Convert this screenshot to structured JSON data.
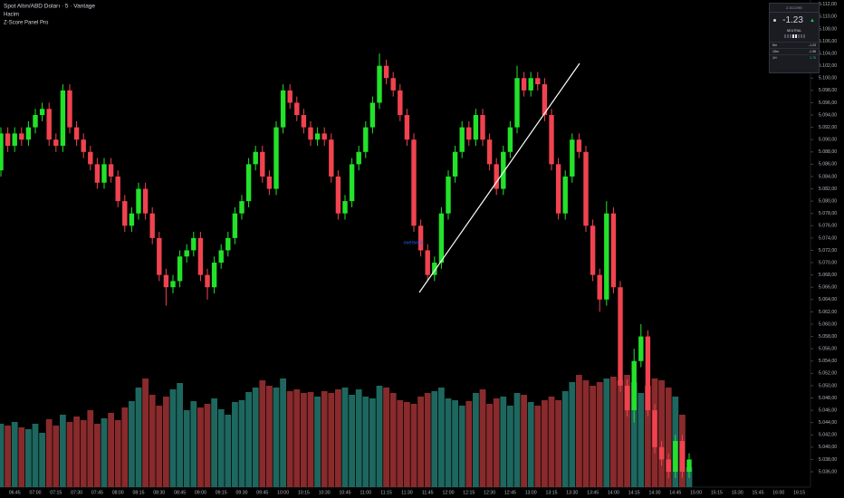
{
  "chart_data": {
    "type": "candlestick",
    "title": "Spot Altın/ABD Doları · 5 · Vantage",
    "indicators": [
      "Hacim",
      "Z-Score Panel Pro"
    ],
    "annotation": "oversold",
    "categories": [
      null,
      null,
      "06:45",
      null,
      null,
      "07:00",
      null,
      null,
      "07:15",
      null,
      null,
      "07:30",
      null,
      null,
      "07:45",
      null,
      null,
      "08:00",
      null,
      null,
      "08:15",
      null,
      null,
      "08:30",
      null,
      null,
      "08:45",
      null,
      null,
      "09:00",
      null,
      null,
      "09:15",
      null,
      null,
      "09:30",
      null,
      null,
      "09:45",
      null,
      null,
      "10:00",
      null,
      null,
      "10:15",
      null,
      null,
      "10:30",
      null,
      null,
      "10:45",
      null,
      null,
      "11:00",
      null,
      null,
      "11:15",
      null,
      null,
      "11:30",
      null,
      null,
      "11:45",
      null,
      null,
      "12:00",
      null,
      null,
      "12:15",
      null,
      null,
      "12:30",
      null,
      null,
      "12:45",
      null,
      null,
      "13:00",
      null,
      null,
      "13:15",
      null,
      null,
      "13:30",
      null,
      null,
      "13:45",
      null,
      null,
      "14:00",
      null,
      null,
      "14:15",
      null,
      null,
      "14:30",
      null,
      null,
      "14:45",
      null,
      null,
      "15:00",
      null,
      null,
      "15:15",
      null,
      null,
      "15:30",
      null,
      null,
      "15:45",
      null,
      null,
      "16:00",
      null,
      null,
      "16:15"
    ],
    "open": [
      5085,
      5091,
      5089,
      5091,
      5090,
      5092,
      5094,
      5095,
      5090,
      5089,
      5098,
      5092,
      5090,
      5088,
      5086,
      5083,
      5086,
      5084,
      5080,
      5076,
      5078,
      5082,
      5078,
      5074,
      5068,
      5066,
      5067,
      5071,
      5072,
      5074,
      5068,
      5066,
      5070,
      5072,
      5074,
      5078,
      5080,
      5086,
      5088,
      5084,
      5082,
      5092,
      5098,
      5096,
      5094,
      5092,
      5090,
      5091,
      5090,
      5084,
      5078,
      5080,
      5086,
      5088,
      5092,
      5096,
      5102,
      5100,
      5098,
      5094,
      5090,
      5076,
      5072,
      5068,
      5070,
      5078,
      5084,
      5088,
      5092,
      5090,
      5094,
      5090,
      5086,
      5082,
      5088,
      5092,
      5100,
      5098,
      5100,
      5099,
      5094,
      5086,
      5078,
      5084,
      5090,
      5088,
      5076,
      5068,
      5064,
      5078,
      5066,
      5050,
      5046,
      5054,
      5058,
      5046,
      5040,
      5038,
      5036,
      5041,
      5036,
      null,
      null,
      null,
      null,
      null,
      null,
      null,
      null,
      null,
      null,
      null,
      null,
      null,
      null,
      null,
      null
    ],
    "high": [
      5092,
      5092,
      5092,
      5092,
      5093,
      5095,
      5096,
      5096,
      5091,
      5099,
      5099,
      5093,
      5091,
      5089,
      5087,
      5087,
      5087,
      5085,
      5081,
      5079,
      5083,
      5083,
      5079,
      5075,
      5069,
      5068,
      5072,
      5073,
      5075,
      5075,
      5069,
      5071,
      5073,
      5075,
      5079,
      5081,
      5087,
      5089,
      5089,
      5085,
      5093,
      5099,
      5099,
      5097,
      5095,
      5093,
      5092,
      5092,
      5091,
      5085,
      5081,
      5087,
      5089,
      5093,
      5097,
      5104,
      5103,
      5101,
      5099,
      5095,
      5091,
      5077,
      5073,
      5071,
      5079,
      5085,
      5089,
      5093,
      5093,
      5095,
      5095,
      5091,
      5087,
      5089,
      5093,
      5102,
      5101,
      5101,
      5101,
      5100,
      5095,
      5087,
      5085,
      5091,
      5091,
      5089,
      5077,
      5069,
      5080,
      5079,
      5067,
      5051,
      5056,
      5060,
      5059,
      5047,
      5041,
      5039,
      5042,
      5042,
      5039,
      null,
      null,
      null,
      null,
      null,
      null,
      null,
      null,
      null,
      null,
      null,
      null,
      null,
      null,
      null,
      null
    ],
    "low": [
      5084,
      5088,
      5088,
      5089,
      5089,
      5091,
      5093,
      5089,
      5088,
      5088,
      5091,
      5089,
      5087,
      5085,
      5082,
      5082,
      5083,
      5079,
      5075,
      5075,
      5077,
      5077,
      5073,
      5067,
      5063,
      5065,
      5066,
      5070,
      5071,
      5067,
      5064,
      5065,
      5069,
      5071,
      5073,
      5077,
      5079,
      5085,
      5083,
      5081,
      5081,
      5091,
      5095,
      5093,
      5091,
      5089,
      5089,
      5089,
      5083,
      5077,
      5077,
      5079,
      5085,
      5087,
      5091,
      5095,
      5099,
      5097,
      5093,
      5089,
      5075,
      5071,
      5067,
      5067,
      5069,
      5077,
      5083,
      5087,
      5089,
      5089,
      5089,
      5085,
      5081,
      5081,
      5087,
      5091,
      5097,
      5097,
      5098,
      5093,
      5085,
      5077,
      5077,
      5083,
      5087,
      5075,
      5067,
      5062,
      5063,
      5065,
      5049,
      5045,
      5044,
      5053,
      5045,
      5039,
      5037,
      5035,
      5035,
      5035,
      5035,
      null,
      null,
      null,
      null,
      null,
      null,
      null,
      null,
      null,
      null,
      null,
      null,
      null,
      null,
      null,
      null
    ],
    "close": [
      5091,
      5089,
      5091,
      5090,
      5092,
      5094,
      5095,
      5090,
      5089,
      5098,
      5092,
      5090,
      5088,
      5086,
      5083,
      5086,
      5084,
      5080,
      5076,
      5078,
      5082,
      5078,
      5074,
      5068,
      5066,
      5067,
      5071,
      5072,
      5074,
      5068,
      5066,
      5070,
      5072,
      5074,
      5078,
      5080,
      5086,
      5088,
      5084,
      5082,
      5092,
      5098,
      5096,
      5094,
      5092,
      5090,
      5091,
      5090,
      5084,
      5078,
      5080,
      5086,
      5088,
      5092,
      5096,
      5102,
      5100,
      5098,
      5094,
      5090,
      5076,
      5072,
      5068,
      5070,
      5078,
      5084,
      5088,
      5092,
      5090,
      5094,
      5090,
      5086,
      5082,
      5088,
      5092,
      5100,
      5098,
      5100,
      5099,
      5094,
      5086,
      5078,
      5084,
      5090,
      5088,
      5076,
      5068,
      5064,
      5078,
      5066,
      5050,
      5046,
      5054,
      5058,
      5046,
      5040,
      5038,
      5036,
      5041,
      5036,
      5038,
      null,
      null,
      null,
      null,
      null,
      null,
      null,
      null,
      null,
      null,
      null,
      null,
      null,
      null,
      null,
      null
    ],
    "volume": [
      70,
      68,
      72,
      66,
      64,
      70,
      60,
      75,
      68,
      80,
      72,
      78,
      74,
      85,
      70,
      76,
      82,
      74,
      88,
      95,
      110,
      120,
      102,
      90,
      100,
      108,
      115,
      85,
      95,
      88,
      92,
      98,
      86,
      80,
      94,
      96,
      105,
      110,
      118,
      112,
      110,
      120,
      106,
      108,
      104,
      105,
      100,
      106,
      104,
      108,
      110,
      102,
      108,
      100,
      98,
      112,
      110,
      104,
      96,
      94,
      92,
      100,
      104,
      106,
      110,
      98,
      96,
      90,
      95,
      104,
      108,
      92,
      98,
      100,
      90,
      104,
      102,
      94,
      90,
      96,
      100,
      96,
      106,
      116,
      124,
      118,
      112,
      116,
      120,
      122,
      118,
      124,
      116,
      104,
      112,
      120,
      118,
      110,
      100,
      80,
      22,
      null,
      null,
      null,
      null,
      null,
      null,
      null,
      null,
      null,
      null,
      null,
      null,
      null,
      null,
      null,
      null
    ],
    "up_color": "#22e22a",
    "down_color": "#f0434f",
    "volume_up_color": "#1d675f",
    "volume_down_color": "#892a2c",
    "grid": false,
    "ylim": [
      5033.5,
      5112.7
    ],
    "yticks": [
      {
        "value": 5036,
        "label": "5.036,00"
      },
      {
        "value": 5038,
        "label": "5.038,00"
      },
      {
        "value": 5040,
        "label": "5.040,00"
      },
      {
        "value": 5042,
        "label": "5.042,00"
      },
      {
        "value": 5044,
        "label": "5.044,00"
      },
      {
        "value": 5046,
        "label": "5.046,00"
      },
      {
        "value": 5048,
        "label": "5.048,00"
      },
      {
        "value": 5050,
        "label": "5.050,00"
      },
      {
        "value": 5052,
        "label": "5.052,00"
      },
      {
        "value": 5054,
        "label": "5.054,00"
      },
      {
        "value": 5056,
        "label": "5.056,00"
      },
      {
        "value": 5058,
        "label": "5.058,00"
      },
      {
        "value": 5060,
        "label": "5.060,00"
      },
      {
        "value": 5062,
        "label": "5.062,00"
      },
      {
        "value": 5064,
        "label": "5.064,00"
      },
      {
        "value": 5066,
        "label": "5.066,00"
      },
      {
        "value": 5068,
        "label": "5.068,00"
      },
      {
        "value": 5070,
        "label": "5.070,00"
      },
      {
        "value": 5072,
        "label": "5.072,00"
      },
      {
        "value": 5074,
        "label": "5.074,00"
      },
      {
        "value": 5076,
        "label": "5.076,00"
      },
      {
        "value": 5078,
        "label": "5.078,00"
      },
      {
        "value": 5080,
        "label": "5.080,00"
      },
      {
        "value": 5082,
        "label": "5.082,00"
      },
      {
        "value": 5084,
        "label": "5.084,00"
      },
      {
        "value": 5086,
        "label": "5.086,00"
      },
      {
        "value": 5088,
        "label": "5.088,00"
      },
      {
        "value": 5090,
        "label": "5.090,00"
      },
      {
        "value": 5092,
        "label": "5.092,00"
      },
      {
        "value": 5094,
        "label": "5.094,00"
      },
      {
        "value": 5096,
        "label": "5.096,00"
      },
      {
        "value": 5098,
        "label": "5.098,00"
      },
      {
        "value": 5100,
        "label": "5.100,00"
      },
      {
        "value": 5102,
        "label": "5.102,00"
      },
      {
        "value": 5104,
        "label": "5.104,00"
      },
      {
        "value": 5106,
        "label": "5.106,00"
      },
      {
        "value": 5108,
        "label": "5.108,00"
      },
      {
        "value": 5110,
        "label": "5.110,00"
      },
      {
        "value": 5112,
        "label": "5.112,00"
      }
    ]
  },
  "panel": {
    "title": "Z-SCORE",
    "value": "-1.23",
    "arrow": "▲",
    "state": "NEUTRAL",
    "rows": [
      [
        "5m",
        "-1.23"
      ],
      [
        "15m",
        "-1.98"
      ],
      [
        "1H",
        "2.75"
      ]
    ]
  }
}
